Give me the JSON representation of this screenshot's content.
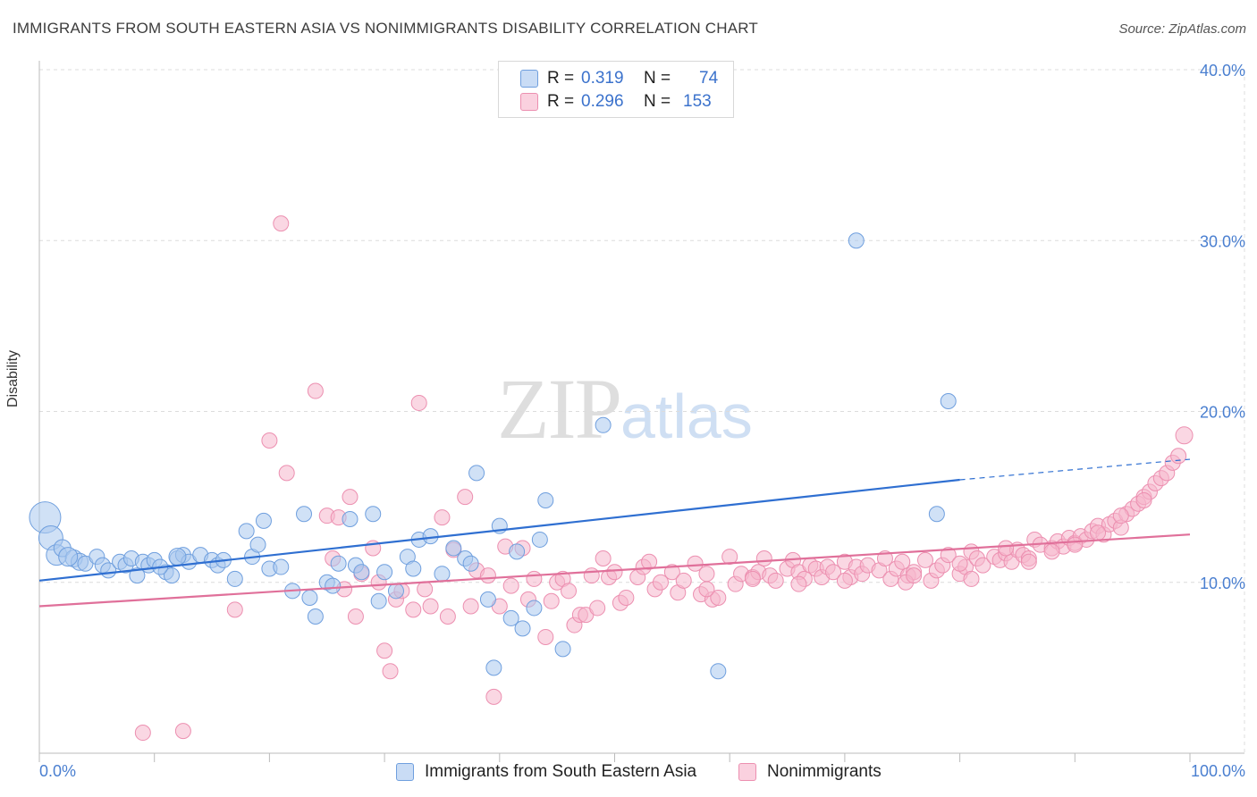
{
  "title": "IMMIGRANTS FROM SOUTH EASTERN ASIA VS NONIMMIGRANTS DISABILITY CORRELATION CHART",
  "source": "Source: ZipAtlas.com",
  "watermark": {
    "zip": "ZIP",
    "atlas": "atlas"
  },
  "colors": {
    "blue_fill": "#aac8ee",
    "blue_stroke": "#6f9fde",
    "blue_line": "#2f6fd1",
    "pink_fill": "#f6b7cc",
    "pink_stroke": "#ec8fb0",
    "pink_line": "#e0709a",
    "axis_text": "#4a7fd0",
    "grid": "#dcdcdc"
  },
  "legend": {
    "rows": [
      {
        "r_label": "R =",
        "r_value": "0.319",
        "n_label": "N =",
        "n_value": "74"
      },
      {
        "r_label": "R =",
        "r_value": "0.296",
        "n_label": "N =",
        "n_value": "153"
      }
    ]
  },
  "bottom_legend": {
    "series1": "Immigrants from South Eastern Asia",
    "series2": "Nonimmigrants"
  },
  "chart_data": {
    "type": "scatter",
    "title": "IMMIGRANTS FROM SOUTH EASTERN ASIA VS NONIMMIGRANTS DISABILITY CORRELATION CHART",
    "xlabel": "",
    "ylabel": "Disability",
    "xlim": [
      0,
      100
    ],
    "ylim": [
      0,
      40
    ],
    "x_tick_labels": [
      "0.0%",
      "100.0%"
    ],
    "y_ticks": [
      10,
      20,
      30,
      40
    ],
    "y_tick_labels": [
      "10.0%",
      "20.0%",
      "30.0%",
      "40.0%"
    ],
    "grid": true,
    "legend_position": "top-center",
    "series": [
      {
        "name": "Immigrants from South Eastern Asia",
        "r": 0.319,
        "n": 74,
        "trend": {
          "x0": 0,
          "y0": 10.1,
          "x1": 80,
          "y1": 16.0,
          "dashed_to_x": 100,
          "dashed_to_y": 17.2
        },
        "points": [
          [
            0.5,
            13.8,
            16
          ],
          [
            1,
            12.6,
            12
          ],
          [
            1.5,
            11.6,
            10
          ],
          [
            2,
            12.0,
            8
          ],
          [
            3,
            11.4,
            8
          ],
          [
            3.5,
            11.2,
            8
          ],
          [
            4,
            11.1,
            7
          ],
          [
            5,
            11.5,
            7
          ],
          [
            5.5,
            11.0,
            7
          ],
          [
            6,
            10.7,
            7
          ],
          [
            7,
            11.2,
            7
          ],
          [
            7.5,
            11.0,
            7
          ],
          [
            8,
            11.4,
            7
          ],
          [
            9,
            11.2,
            7
          ],
          [
            9.5,
            11.0,
            7
          ],
          [
            10,
            11.3,
            7
          ],
          [
            11,
            10.6,
            7
          ],
          [
            11.5,
            10.4,
            7
          ],
          [
            12,
            11.4,
            7
          ],
          [
            12.5,
            11.6,
            7
          ],
          [
            13,
            11.2,
            7
          ],
          [
            14,
            11.6,
            7
          ],
          [
            15,
            11.3,
            7
          ],
          [
            15.5,
            11.0,
            7
          ],
          [
            16,
            11.3,
            7
          ],
          [
            17,
            10.2,
            7
          ],
          [
            18,
            13.0,
            7
          ],
          [
            18.5,
            11.5,
            7
          ],
          [
            19,
            12.2,
            7
          ],
          [
            19.5,
            13.6,
            7
          ],
          [
            20,
            10.8,
            7
          ],
          [
            21,
            10.9,
            7
          ],
          [
            22,
            9.5,
            7
          ],
          [
            23,
            14.0,
            7
          ],
          [
            23.5,
            9.1,
            7
          ],
          [
            24,
            8.0,
            7
          ],
          [
            25,
            10.0,
            7
          ],
          [
            25.5,
            9.8,
            7
          ],
          [
            26,
            11.1,
            7
          ],
          [
            27,
            13.7,
            7
          ],
          [
            27.5,
            11.0,
            7
          ],
          [
            28,
            10.6,
            7
          ],
          [
            29,
            14.0,
            7
          ],
          [
            29.5,
            8.9,
            7
          ],
          [
            30,
            10.6,
            7
          ],
          [
            31,
            9.5,
            7
          ],
          [
            32,
            11.5,
            7
          ],
          [
            32.5,
            10.8,
            7
          ],
          [
            33,
            12.5,
            7
          ],
          [
            34,
            12.7,
            7
          ],
          [
            35,
            10.5,
            7
          ],
          [
            36,
            12.0,
            7
          ],
          [
            37,
            11.4,
            7
          ],
          [
            37.5,
            11.1,
            7
          ],
          [
            38,
            16.4,
            7
          ],
          [
            39,
            9.0,
            7
          ],
          [
            39.5,
            5.0,
            7
          ],
          [
            40,
            13.3,
            7
          ],
          [
            41,
            7.9,
            7
          ],
          [
            41.5,
            11.8,
            7
          ],
          [
            42,
            7.3,
            7
          ],
          [
            43,
            8.5,
            7
          ],
          [
            43.5,
            12.5,
            7
          ],
          [
            44,
            14.8,
            7
          ],
          [
            45.5,
            6.1,
            7
          ],
          [
            49,
            19.2,
            7
          ],
          [
            59,
            4.8,
            7
          ],
          [
            71,
            30.0,
            7
          ],
          [
            78,
            14.0,
            7
          ],
          [
            79,
            20.6,
            7
          ],
          [
            12,
            11.5,
            8
          ],
          [
            10.5,
            10.9,
            7
          ],
          [
            2.5,
            11.5,
            9
          ],
          [
            8.5,
            10.4,
            7
          ]
        ]
      },
      {
        "name": "Nonimmigrants",
        "r": 0.296,
        "n": 153,
        "trend": {
          "x0": 0,
          "y0": 8.6,
          "x1": 100,
          "y1": 12.8
        },
        "points": [
          [
            9,
            1.2,
            7
          ],
          [
            12.5,
            1.3,
            7
          ],
          [
            17,
            8.4,
            7
          ],
          [
            20,
            18.3,
            7
          ],
          [
            21,
            31.0,
            7
          ],
          [
            21.5,
            16.4,
            7
          ],
          [
            24,
            21.2,
            7
          ],
          [
            25,
            13.9,
            7
          ],
          [
            25.5,
            11.4,
            7
          ],
          [
            26,
            13.8,
            7
          ],
          [
            26.5,
            9.6,
            7
          ],
          [
            27,
            15.0,
            7
          ],
          [
            27.5,
            8.0,
            7
          ],
          [
            28,
            10.5,
            7
          ],
          [
            29,
            12.0,
            7
          ],
          [
            29.5,
            10.0,
            7
          ],
          [
            30,
            6.0,
            7
          ],
          [
            30.5,
            4.8,
            7
          ],
          [
            31,
            9.0,
            7
          ],
          [
            31.5,
            9.5,
            7
          ],
          [
            32.5,
            8.4,
            7
          ],
          [
            33,
            20.5,
            7
          ],
          [
            33.5,
            9.6,
            7
          ],
          [
            34,
            8.6,
            7
          ],
          [
            35,
            13.8,
            7
          ],
          [
            35.5,
            8.0,
            7
          ],
          [
            36,
            11.9,
            7
          ],
          [
            37,
            15.0,
            7
          ],
          [
            37.5,
            8.6,
            7
          ],
          [
            38,
            10.7,
            7
          ],
          [
            39,
            10.4,
            7
          ],
          [
            39.5,
            3.3,
            7
          ],
          [
            40,
            8.6,
            7
          ],
          [
            40.5,
            12.1,
            7
          ],
          [
            41,
            9.8,
            7
          ],
          [
            42,
            12.0,
            7
          ],
          [
            42.5,
            9.0,
            7
          ],
          [
            43,
            10.2,
            7
          ],
          [
            44,
            6.8,
            7
          ],
          [
            44.5,
            8.9,
            7
          ],
          [
            45,
            10.0,
            7
          ],
          [
            45.5,
            10.2,
            7
          ],
          [
            46,
            9.5,
            7
          ],
          [
            46.5,
            7.5,
            7
          ],
          [
            47,
            8.1,
            7
          ],
          [
            47.5,
            8.1,
            7
          ],
          [
            48,
            10.4,
            7
          ],
          [
            48.5,
            8.5,
            7
          ],
          [
            49,
            11.4,
            7
          ],
          [
            49.5,
            10.3,
            7
          ],
          [
            50,
            10.6,
            7
          ],
          [
            50.5,
            8.8,
            7
          ],
          [
            51,
            9.1,
            7
          ],
          [
            52,
            10.3,
            7
          ],
          [
            52.5,
            10.9,
            7
          ],
          [
            53,
            11.2,
            7
          ],
          [
            53.5,
            9.6,
            7
          ],
          [
            54,
            10.0,
            7
          ],
          [
            55,
            10.6,
            7
          ],
          [
            55.5,
            9.4,
            7
          ],
          [
            56,
            10.1,
            7
          ],
          [
            57,
            11.1,
            7
          ],
          [
            57.5,
            9.3,
            7
          ],
          [
            58,
            10.5,
            7
          ],
          [
            58.5,
            9.0,
            7
          ],
          [
            59,
            9.1,
            7
          ],
          [
            60,
            11.5,
            7
          ],
          [
            60.5,
            9.9,
            7
          ],
          [
            61,
            10.5,
            7
          ],
          [
            62,
            10.3,
            7
          ],
          [
            62.5,
            10.6,
            7
          ],
          [
            63,
            11.4,
            7
          ],
          [
            63.5,
            10.4,
            7
          ],
          [
            64,
            10.1,
            7
          ],
          [
            65,
            10.8,
            7
          ],
          [
            65.5,
            11.3,
            7
          ],
          [
            66,
            10.6,
            7
          ],
          [
            66.5,
            10.2,
            7
          ],
          [
            67,
            11.0,
            7
          ],
          [
            67.5,
            10.8,
            7
          ],
          [
            68,
            10.3,
            7
          ],
          [
            68.5,
            10.9,
            7
          ],
          [
            69,
            10.6,
            7
          ],
          [
            70,
            11.2,
            7
          ],
          [
            70.5,
            10.3,
            7
          ],
          [
            71,
            10.9,
            7
          ],
          [
            71.5,
            10.5,
            7
          ],
          [
            72,
            11.0,
            7
          ],
          [
            73,
            10.7,
            7
          ],
          [
            73.5,
            11.4,
            7
          ],
          [
            74,
            10.2,
            7
          ],
          [
            74.5,
            10.8,
            7
          ],
          [
            75,
            11.2,
            7
          ],
          [
            75.5,
            10.4,
            7
          ],
          [
            76,
            10.6,
            7
          ],
          [
            77,
            11.3,
            7
          ],
          [
            77.5,
            10.1,
            7
          ],
          [
            78,
            10.7,
            7
          ],
          [
            78.5,
            11.0,
            7
          ],
          [
            79,
            11.6,
            7
          ],
          [
            80,
            10.5,
            7
          ],
          [
            80.5,
            10.9,
            7
          ],
          [
            81,
            11.8,
            7
          ],
          [
            81.5,
            11.4,
            7
          ],
          [
            82,
            11.0,
            7
          ],
          [
            83,
            11.5,
            7
          ],
          [
            83.5,
            11.3,
            7
          ],
          [
            84,
            11.7,
            7
          ],
          [
            84.5,
            11.2,
            7
          ],
          [
            85,
            11.9,
            7
          ],
          [
            85.5,
            11.6,
            7
          ],
          [
            86,
            11.4,
            7
          ],
          [
            86.5,
            12.5,
            7
          ],
          [
            87,
            12.2,
            7
          ],
          [
            88,
            12.0,
            7
          ],
          [
            88.5,
            12.4,
            7
          ],
          [
            89,
            12.1,
            7
          ],
          [
            89.5,
            12.6,
            7
          ],
          [
            90,
            12.3,
            7
          ],
          [
            90.5,
            12.7,
            7
          ],
          [
            91,
            12.5,
            7
          ],
          [
            91.5,
            13.0,
            7
          ],
          [
            92,
            13.3,
            7
          ],
          [
            92.5,
            12.8,
            7
          ],
          [
            93,
            13.4,
            7
          ],
          [
            93.5,
            13.6,
            7
          ],
          [
            94,
            13.2,
            7
          ],
          [
            94.5,
            14.0,
            7
          ],
          [
            95,
            14.3,
            7
          ],
          [
            95.5,
            14.6,
            7
          ],
          [
            96,
            15.0,
            7
          ],
          [
            96.5,
            15.3,
            7
          ],
          [
            97,
            15.8,
            7
          ],
          [
            97.5,
            16.1,
            7
          ],
          [
            98,
            16.4,
            7
          ],
          [
            98.5,
            17.0,
            7
          ],
          [
            99,
            17.4,
            7
          ],
          [
            99.5,
            18.6,
            8
          ],
          [
            75.3,
            10.0,
            7
          ],
          [
            81,
            10.2,
            7
          ],
          [
            86,
            11.2,
            7
          ],
          [
            90,
            12.2,
            7
          ],
          [
            92,
            12.9,
            7
          ],
          [
            94,
            13.9,
            7
          ],
          [
            96,
            14.8,
            7
          ],
          [
            88,
            11.8,
            7
          ],
          [
            84,
            12.0,
            7
          ],
          [
            80,
            11.1,
            7
          ],
          [
            76,
            10.4,
            7
          ],
          [
            70,
            10.1,
            7
          ],
          [
            66,
            9.9,
            7
          ],
          [
            62,
            10.2,
            7
          ],
          [
            58,
            9.6,
            7
          ]
        ]
      }
    ]
  }
}
